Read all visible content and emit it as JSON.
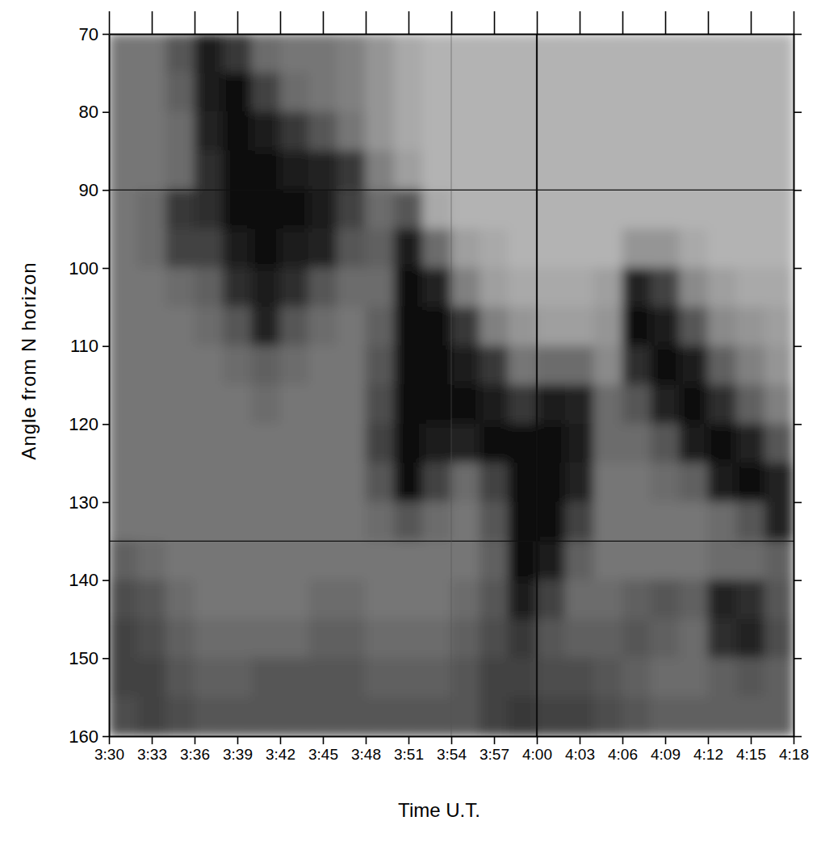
{
  "chart_data": {
    "type": "heatmap",
    "x_label": "Time U.T.",
    "y_label": "Angle from N horizon",
    "xlim": [
      210,
      258
    ],
    "xticks": [
      {
        "value": 210,
        "label": "3:30"
      },
      {
        "value": 213,
        "label": "3:33"
      },
      {
        "value": 216,
        "label": "3:36"
      },
      {
        "value": 219,
        "label": "3:39"
      },
      {
        "value": 222,
        "label": "3:42"
      },
      {
        "value": 225,
        "label": "3:45"
      },
      {
        "value": 228,
        "label": "3:48"
      },
      {
        "value": 231,
        "label": "3:51"
      },
      {
        "value": 234,
        "label": "3:54"
      },
      {
        "value": 237,
        "label": "3:57"
      },
      {
        "value": 240,
        "label": "4:00"
      },
      {
        "value": 243,
        "label": "4:03"
      },
      {
        "value": 246,
        "label": "4:06"
      },
      {
        "value": 249,
        "label": "4:09"
      },
      {
        "value": 252,
        "label": "4:12"
      },
      {
        "value": 255,
        "label": "4:15"
      },
      {
        "value": 258,
        "label": "4:18"
      }
    ],
    "ylim": [
      160,
      70
    ],
    "yticks": [
      70,
      80,
      90,
      100,
      110,
      120,
      130,
      140,
      150,
      160
    ],
    "x_bins": [
      210,
      212,
      214,
      216,
      218,
      220,
      222,
      224,
      226,
      228,
      230,
      232,
      234,
      236,
      238,
      240,
      242,
      244,
      246,
      248,
      250,
      252,
      254,
      256,
      258
    ],
    "y_bins": [
      70,
      75,
      80,
      85,
      90,
      95,
      100,
      105,
      110,
      115,
      120,
      125,
      130,
      135,
      140,
      145,
      150,
      155,
      160
    ],
    "zlim": [
      0,
      1
    ],
    "z": [
      [
        0.45,
        0.45,
        0.6,
        0.9,
        0.75,
        0.5,
        0.45,
        0.45,
        0.4,
        0.3,
        0.2,
        0.15,
        0.15,
        0.15,
        0.15,
        0.15,
        0.15,
        0.15,
        0.15,
        0.15,
        0.15,
        0.15,
        0.15,
        0.15
      ],
      [
        0.45,
        0.45,
        0.55,
        0.9,
        0.95,
        0.7,
        0.5,
        0.45,
        0.4,
        0.3,
        0.2,
        0.15,
        0.15,
        0.15,
        0.15,
        0.15,
        0.15,
        0.15,
        0.15,
        0.15,
        0.15,
        0.15,
        0.15,
        0.15
      ],
      [
        0.45,
        0.45,
        0.5,
        0.85,
        0.95,
        0.9,
        0.75,
        0.6,
        0.45,
        0.3,
        0.2,
        0.15,
        0.15,
        0.15,
        0.15,
        0.15,
        0.15,
        0.15,
        0.15,
        0.15,
        0.15,
        0.15,
        0.15,
        0.15
      ],
      [
        0.45,
        0.45,
        0.5,
        0.8,
        0.95,
        0.95,
        0.9,
        0.85,
        0.75,
        0.4,
        0.25,
        0.15,
        0.15,
        0.15,
        0.15,
        0.15,
        0.15,
        0.15,
        0.15,
        0.15,
        0.15,
        0.15,
        0.15,
        0.15
      ],
      [
        0.45,
        0.5,
        0.75,
        0.8,
        0.95,
        0.95,
        0.95,
        0.9,
        0.7,
        0.5,
        0.6,
        0.2,
        0.15,
        0.15,
        0.15,
        0.15,
        0.15,
        0.15,
        0.15,
        0.15,
        0.15,
        0.15,
        0.15,
        0.15
      ],
      [
        0.45,
        0.5,
        0.7,
        0.7,
        0.9,
        0.95,
        0.9,
        0.85,
        0.6,
        0.55,
        0.9,
        0.5,
        0.25,
        0.2,
        0.15,
        0.15,
        0.15,
        0.15,
        0.3,
        0.3,
        0.2,
        0.15,
        0.15,
        0.15
      ],
      [
        0.45,
        0.45,
        0.5,
        0.55,
        0.8,
        0.9,
        0.8,
        0.6,
        0.5,
        0.5,
        0.95,
        0.85,
        0.4,
        0.25,
        0.2,
        0.2,
        0.2,
        0.25,
        0.85,
        0.7,
        0.35,
        0.25,
        0.2,
        0.2
      ],
      [
        0.45,
        0.45,
        0.45,
        0.5,
        0.6,
        0.85,
        0.6,
        0.5,
        0.45,
        0.55,
        0.95,
        0.95,
        0.75,
        0.4,
        0.3,
        0.25,
        0.25,
        0.3,
        0.95,
        0.9,
        0.6,
        0.35,
        0.3,
        0.25
      ],
      [
        0.45,
        0.45,
        0.45,
        0.45,
        0.5,
        0.55,
        0.5,
        0.45,
        0.45,
        0.6,
        0.95,
        0.95,
        0.9,
        0.75,
        0.45,
        0.5,
        0.5,
        0.35,
        0.8,
        0.95,
        0.9,
        0.55,
        0.4,
        0.3
      ],
      [
        0.45,
        0.45,
        0.45,
        0.45,
        0.45,
        0.5,
        0.45,
        0.45,
        0.45,
        0.65,
        0.95,
        0.95,
        0.95,
        0.9,
        0.75,
        0.9,
        0.85,
        0.5,
        0.6,
        0.85,
        0.95,
        0.8,
        0.55,
        0.4
      ],
      [
        0.45,
        0.45,
        0.45,
        0.45,
        0.45,
        0.45,
        0.45,
        0.45,
        0.45,
        0.7,
        0.95,
        0.9,
        0.85,
        0.95,
        0.95,
        0.95,
        0.9,
        0.5,
        0.5,
        0.6,
        0.9,
        0.95,
        0.85,
        0.6
      ],
      [
        0.45,
        0.45,
        0.45,
        0.45,
        0.45,
        0.45,
        0.45,
        0.45,
        0.45,
        0.6,
        0.95,
        0.7,
        0.5,
        0.7,
        0.95,
        0.95,
        0.85,
        0.45,
        0.45,
        0.5,
        0.55,
        0.9,
        0.95,
        0.85
      ],
      [
        0.45,
        0.45,
        0.45,
        0.45,
        0.45,
        0.45,
        0.45,
        0.45,
        0.45,
        0.5,
        0.6,
        0.5,
        0.45,
        0.6,
        0.95,
        0.95,
        0.7,
        0.45,
        0.45,
        0.45,
        0.45,
        0.5,
        0.6,
        0.85
      ],
      [
        0.55,
        0.5,
        0.45,
        0.45,
        0.45,
        0.45,
        0.45,
        0.45,
        0.45,
        0.45,
        0.45,
        0.45,
        0.45,
        0.55,
        0.95,
        0.9,
        0.55,
        0.45,
        0.45,
        0.45,
        0.45,
        0.5,
        0.5,
        0.55
      ],
      [
        0.65,
        0.6,
        0.5,
        0.45,
        0.45,
        0.45,
        0.45,
        0.5,
        0.5,
        0.45,
        0.45,
        0.45,
        0.5,
        0.6,
        0.9,
        0.7,
        0.5,
        0.5,
        0.55,
        0.6,
        0.55,
        0.85,
        0.8,
        0.6
      ],
      [
        0.7,
        0.65,
        0.55,
        0.5,
        0.5,
        0.5,
        0.5,
        0.55,
        0.55,
        0.5,
        0.5,
        0.5,
        0.55,
        0.65,
        0.75,
        0.6,
        0.55,
        0.55,
        0.6,
        0.55,
        0.5,
        0.8,
        0.85,
        0.65
      ],
      [
        0.7,
        0.7,
        0.6,
        0.55,
        0.55,
        0.6,
        0.6,
        0.6,
        0.6,
        0.55,
        0.55,
        0.55,
        0.6,
        0.7,
        0.7,
        0.65,
        0.65,
        0.6,
        0.55,
        0.5,
        0.5,
        0.55,
        0.6,
        0.55
      ],
      [
        0.65,
        0.7,
        0.65,
        0.6,
        0.6,
        0.6,
        0.6,
        0.6,
        0.6,
        0.6,
        0.6,
        0.6,
        0.6,
        0.7,
        0.75,
        0.7,
        0.7,
        0.65,
        0.6,
        0.55,
        0.55,
        0.55,
        0.55,
        0.55
      ]
    ],
    "reference_lines": {
      "x": [
        234,
        240
      ],
      "y": [
        90,
        135
      ]
    }
  }
}
